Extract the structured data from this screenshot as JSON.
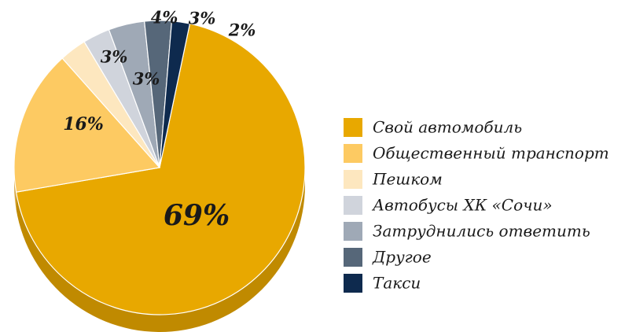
{
  "chart_data": {
    "type": "pie",
    "title": "",
    "legend_position": "right",
    "slices": [
      {
        "name": "Свой автомобиль",
        "value": 69,
        "label": "69%",
        "color": "#E8A800",
        "side_color": "#C08A00"
      },
      {
        "name": "Общественный транспорт",
        "value": 16,
        "label": "16%",
        "color": "#FDCA62",
        "side_color": "#D9A845"
      },
      {
        "name": "Пешком",
        "value": 3,
        "label": "3%",
        "color": "#FDE7BF",
        "side_color": "#D8C49E"
      },
      {
        "name": "Автобусы ХК «Сочи»",
        "value": 3,
        "label": "3%",
        "color": "#D0D4DC",
        "side_color": "#A9AEB8"
      },
      {
        "name": "Затруднились ответить",
        "value": 4,
        "label": "4%",
        "color": "#9FA9B6",
        "side_color": "#7E8896"
      },
      {
        "name": "Другое",
        "value": 3,
        "label": "3%",
        "color": "#566779",
        "side_color": "#3E4C5B"
      },
      {
        "name": "Такси",
        "value": 2,
        "label": "2%",
        "color": "#0E2A4E",
        "side_color": "#081B33"
      }
    ]
  }
}
